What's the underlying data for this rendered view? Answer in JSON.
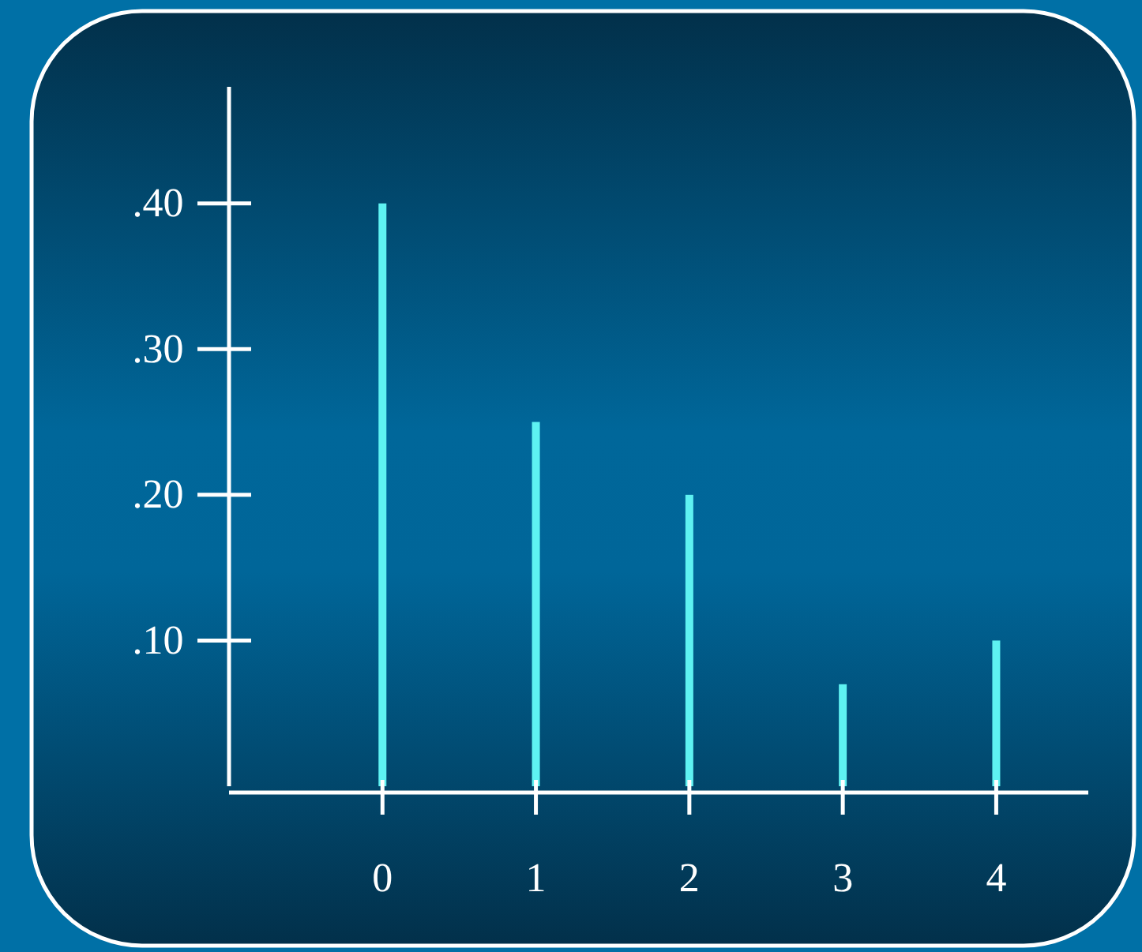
{
  "chart_data": {
    "type": "bar",
    "x": [
      0,
      1,
      2,
      3,
      4
    ],
    "values": [
      0.4,
      0.25,
      0.2,
      0.07,
      0.1
    ],
    "color": "#5ef2f2",
    "xlim": [
      -1,
      4.6
    ],
    "xticks": [
      0,
      1,
      2,
      3,
      4
    ],
    "ylim": [
      0,
      0.48
    ],
    "yticks": [
      {
        "value": 0.1,
        "label": ".10"
      },
      {
        "value": 0.2,
        "label": ".20"
      },
      {
        "value": 0.3,
        "label": ".30"
      },
      {
        "value": 0.4,
        "label": ".40"
      }
    ]
  }
}
